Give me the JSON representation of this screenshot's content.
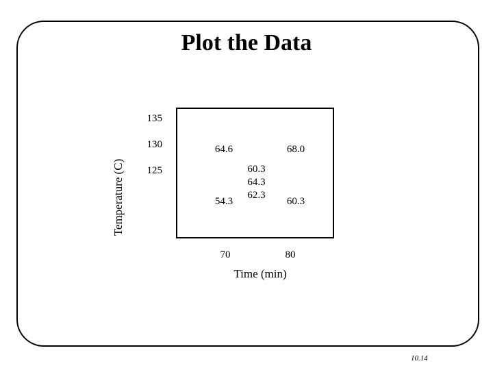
{
  "slide": {
    "title": "Plot the Data",
    "page_number": "10.14"
  },
  "chart_data": {
    "type": "scatter",
    "xlabel": "Time (min)",
    "ylabel": "Temperature (C)",
    "xlim": [
      65,
      85
    ],
    "ylim": [
      125,
      135
    ],
    "x_ticks": [
      70,
      80
    ],
    "y_ticks": [
      125,
      130,
      135
    ],
    "grid": false,
    "points": [
      {
        "x": 70,
        "y": 135,
        "label": "64.6"
      },
      {
        "x": 80,
        "y": 135,
        "label": "68.0"
      },
      {
        "x": 75,
        "y": 130,
        "label": "60.3"
      },
      {
        "x": 75,
        "y": 130,
        "label": "64.3"
      },
      {
        "x": 75,
        "y": 130,
        "label": "62.3"
      },
      {
        "x": 70,
        "y": 125,
        "label": "54.3"
      },
      {
        "x": 80,
        "y": 125,
        "label": "60.3"
      }
    ]
  }
}
